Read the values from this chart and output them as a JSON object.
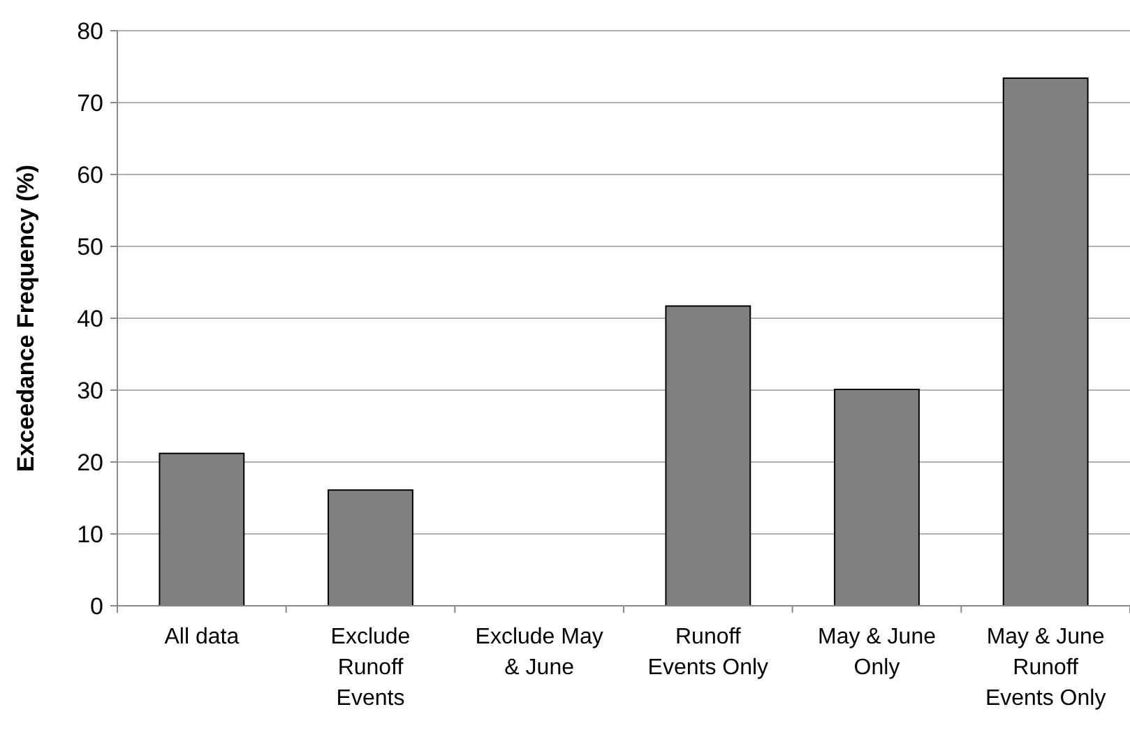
{
  "chart_data": {
    "type": "bar",
    "ylabel": "Exceedance Frequency (%)",
    "categories": [
      "All data",
      "Exclude Runoff Events",
      "Exclude May & June",
      "Runoff Events Only",
      "May & June Only",
      "May & June Runoff Events Only"
    ],
    "values": [
      21.2,
      16.1,
      0,
      41.7,
      30.1,
      73.4
    ],
    "color": "#808080",
    "ylim": [
      0,
      80
    ],
    "yticks": [
      0,
      10,
      20,
      30,
      40,
      50,
      60,
      70,
      80
    ],
    "grid": "y"
  }
}
